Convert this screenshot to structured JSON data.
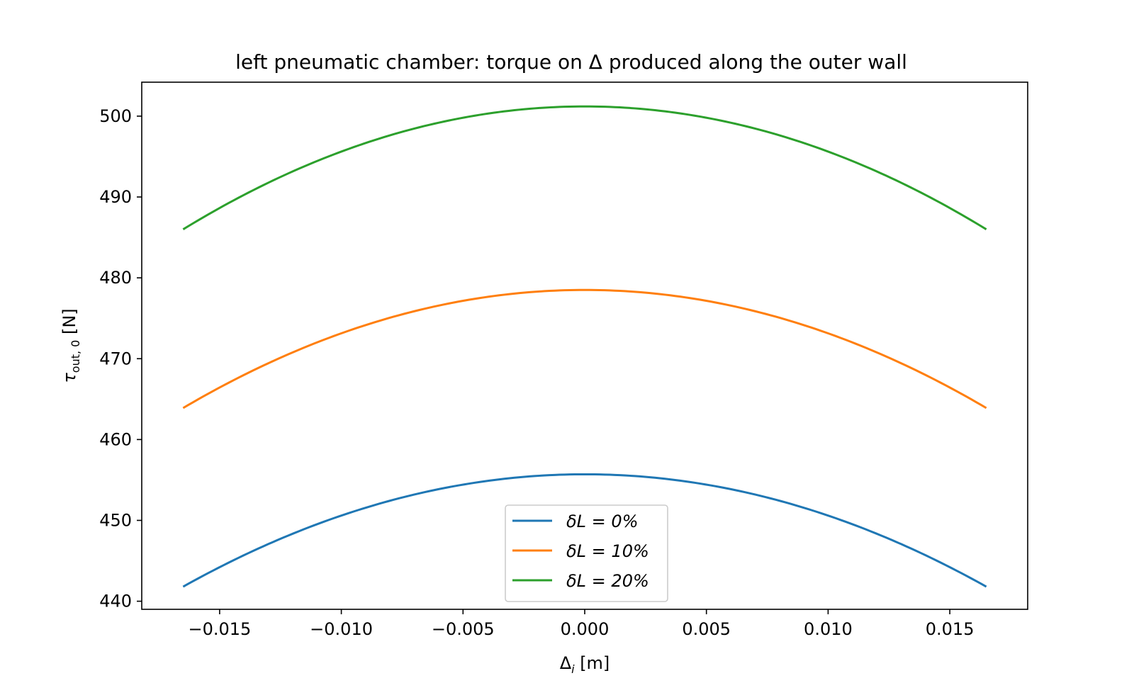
{
  "chart_data": {
    "type": "line",
    "title": "left pneumatic chamber: torque on Δ produced along the outer wall",
    "xlabel": "Δi [m]",
    "xlabel_main": "Δ",
    "xlabel_sub": "i",
    "xlabel_unit": " [m]",
    "ylabel": "τout, 0 [N]",
    "ylabel_main": "τ",
    "ylabel_sub": "out, 0",
    "ylabel_unit": " [N]",
    "xlim": [
      -0.0182,
      0.0182
    ],
    "ylim": [
      439,
      504.2
    ],
    "x_ticks": [
      -0.015,
      -0.01,
      -0.005,
      0.0,
      0.005,
      0.01,
      0.015
    ],
    "x_tick_labels": [
      "−0.015",
      "−0.010",
      "−0.005",
      "0.000",
      "0.005",
      "0.010",
      "0.015"
    ],
    "y_ticks": [
      440,
      450,
      460,
      470,
      480,
      490,
      500
    ],
    "y_tick_labels": [
      "440",
      "450",
      "460",
      "470",
      "480",
      "490",
      "500"
    ],
    "grid": false,
    "legend_position": "lower center",
    "x_range": [
      -0.0165,
      0.0165
    ],
    "series": [
      {
        "name": "δL = 0%",
        "color": "#1f77b4",
        "peak": 455.7,
        "end": 441.8
      },
      {
        "name": "δL = 10%",
        "color": "#ff7f0e",
        "peak": 478.5,
        "end": 463.9
      },
      {
        "name": "δL = 20%",
        "color": "#2ca02c",
        "peak": 501.2,
        "end": 486.0
      }
    ]
  }
}
